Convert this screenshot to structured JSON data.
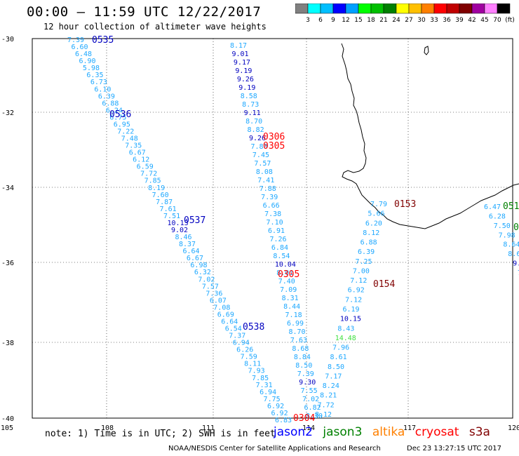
{
  "title": "00:00 – 11:59 UTC 12/22/2017",
  "subtitle": "12 hour collection of altimeter wave heights",
  "colorbar": {
    "labels": [
      "3",
      "6",
      "9",
      "12",
      "15",
      "18",
      "21",
      "24",
      "27",
      "30",
      "33",
      "36",
      "39",
      "42",
      "45",
      "70",
      "(ft)"
    ],
    "colors": [
      "#808080",
      "#00ffff",
      "#00bfff",
      "#0000ff",
      "#00a0ff",
      "#00ff00",
      "#00c000",
      "#008000",
      "#ffff00",
      "#ffc000",
      "#ff8000",
      "#ff0000",
      "#c00000",
      "#800000",
      "#a000a0",
      "#ff80ff",
      "#000000"
    ]
  },
  "axes": {
    "lon_ticks": [
      "105",
      "108",
      "111",
      "114",
      "117",
      "120"
    ],
    "lat_ticks": [
      "-30",
      "-32",
      "-34",
      "-36",
      "-38",
      "-40"
    ]
  },
  "track_colors": {
    "light": "#1ea8ff",
    "dark": "#0000c0",
    "green": "#40e040",
    "red": "#ff0000",
    "maroon": "#800000",
    "darkgreen": "#008000"
  },
  "tracks": [
    {
      "labels": [
        "7.39",
        "6.60",
        "6.48",
        "6.90",
        "5.98",
        "6.35",
        "6.73",
        "6.10",
        "6.39",
        "6.88",
        "6.24",
        "6.75",
        "6.95",
        "7.22",
        "7.48",
        "7.35",
        "6.67",
        "6.12",
        "6.59",
        "7.72",
        "7.85",
        "8.19",
        "7.60",
        "7.87",
        "7.61",
        "7.51",
        "10.13",
        "9.02",
        "8.46",
        "8.37",
        "6.64",
        "6.67",
        "6.98",
        "6.32",
        "7.02",
        "7.57",
        "7.36",
        "6.07",
        "7.08",
        "6.69",
        "6.64",
        "6.54",
        "7.37",
        "6.94",
        "6.26",
        "7.59",
        "8.11",
        "7.93",
        "7.85",
        "7.31",
        "6.94",
        "7.75",
        "6.92",
        "6.92",
        "6.83"
      ],
      "colors": [
        "light",
        "light",
        "light",
        "light",
        "light",
        "light",
        "light",
        "light",
        "light",
        "light",
        "light",
        "light",
        "light",
        "light",
        "light",
        "light",
        "light",
        "light",
        "light",
        "light",
        "light",
        "light",
        "light",
        "light",
        "light",
        "light",
        "dark",
        "dark",
        "light",
        "light",
        "light",
        "light",
        "light",
        "light",
        "light",
        "light",
        "light",
        "light",
        "light",
        "light",
        "light",
        "light",
        "light",
        "light",
        "light",
        "light",
        "light",
        "light",
        "light",
        "light",
        "light",
        "light",
        "light",
        "light",
        "light"
      ]
    },
    {
      "labels": [
        "8.17",
        "9.01",
        "9.17",
        "9.19",
        "9.26",
        "9.19",
        "8.58",
        "8.73",
        "9.11",
        "8.70",
        "8.82",
        "9.26",
        "7.80",
        "7.45",
        "7.57",
        "8.08",
        "7.41",
        "7.88",
        "7.39",
        "6.66",
        "7.38",
        "7.10",
        "6.91",
        "7.26",
        "6.84",
        "8.54",
        "10.04",
        "8.01",
        "7.40",
        "7.09",
        "8.31",
        "8.44",
        "7.18",
        "6.99",
        "8.70",
        "7.63",
        "8.68",
        "8.84",
        "8.50",
        "7.39",
        "9.30",
        "7.55",
        "7.02",
        "6.82",
        "8.30"
      ],
      "colors": [
        "light",
        "dark",
        "dark",
        "dark",
        "dark",
        "dark",
        "light",
        "light",
        "dark",
        "light",
        "light",
        "dark",
        "light",
        "light",
        "light",
        "light",
        "light",
        "light",
        "light",
        "light",
        "light",
        "light",
        "light",
        "light",
        "light",
        "light",
        "dark",
        "light",
        "light",
        "light",
        "light",
        "light",
        "light",
        "light",
        "light",
        "light",
        "light",
        "light",
        "light",
        "light",
        "dark",
        "light",
        "light",
        "light",
        "light"
      ]
    },
    {
      "labels": [
        "7.79",
        "5.66",
        "6.20",
        "8.12",
        "6.88",
        "6.39",
        "7.25",
        "7.00",
        "7.12",
        "6.92",
        "7.12",
        "6.19",
        "10.15",
        "8.43",
        "14.48",
        "7.96",
        "8.61",
        "8.50",
        "7.17",
        "8.24",
        "8.21",
        "7.72",
        "8.12"
      ],
      "colors": [
        "light",
        "light",
        "light",
        "light",
        "light",
        "light",
        "light",
        "light",
        "light",
        "light",
        "light",
        "light",
        "dark",
        "light",
        "green",
        "light",
        "light",
        "light",
        "light",
        "light",
        "light",
        "light",
        "light"
      ]
    },
    {
      "labels": [
        "6.47",
        "6.28",
        "7.50",
        "7.98",
        "8.64",
        "8.65",
        "9.24",
        "7"
      ],
      "colors": [
        "light",
        "light",
        "light",
        "light",
        "light",
        "light",
        "dark",
        "light"
      ]
    }
  ],
  "time_labels": [
    {
      "text": "0535",
      "color": "dark"
    },
    {
      "text": "0536",
      "color": "dark"
    },
    {
      "text": "0537",
      "color": "dark"
    },
    {
      "text": "0538",
      "color": "dark"
    },
    {
      "text": "0306",
      "color": "red"
    },
    {
      "text": "0305",
      "color": "red"
    },
    {
      "text": "0305",
      "color": "red"
    },
    {
      "text": "0304",
      "color": "red"
    },
    {
      "text": "0153",
      "color": "maroon"
    },
    {
      "text": "0154",
      "color": "maroon"
    },
    {
      "text": "051",
      "color": "darkgreen"
    },
    {
      "text": "0",
      "color": "darkgreen"
    }
  ],
  "note": "note: 1) Time is in UTC; 2) SWH is in feet",
  "satellites": [
    {
      "name": "jason2",
      "color": "#0000ff"
    },
    {
      "name": "jason3",
      "color": "#008000"
    },
    {
      "name": "altika",
      "color": "#ff8000"
    },
    {
      "name": "cryosat",
      "color": "#ff0000"
    },
    {
      "name": "s3a",
      "color": "#800000"
    }
  ],
  "credit": "NOAA/NESDIS Center for Satellite Applications and Research",
  "timestamp": "Dec 23 13:27:15 UTC 2017"
}
